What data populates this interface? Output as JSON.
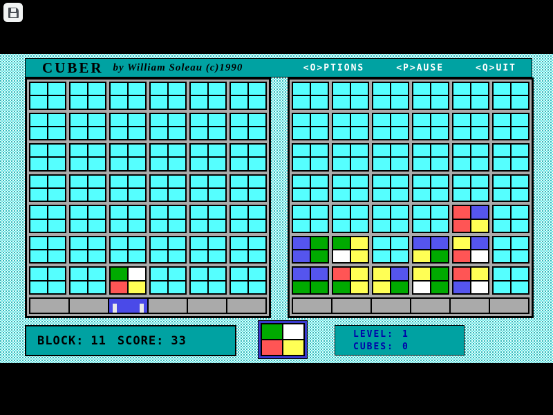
{
  "overlay": {
    "save_tooltip": "save",
    "toggle_glyph": "›"
  },
  "titlebar": {
    "title": "CUBER",
    "byline": "by William Soleau  (c)1990",
    "menu": [
      {
        "label": "<O>PTIONS"
      },
      {
        "label": "<P>AUSE"
      },
      {
        "label": "<Q>UIT"
      }
    ]
  },
  "colors": {
    "teal": "#00a2a2",
    "cyan_cell": "#55ffff",
    "gray": "#aaaaaa",
    "navy_text": "#0000aa",
    "paddle_blue": "#4a4ae8",
    "cells": {
      "C": "#55ffff",
      "G": "#00aa00",
      "R": "#ff5555",
      "Y": "#ffff55",
      "B": "#5555ee",
      "W": "#ffffff"
    }
  },
  "boards": {
    "left": {
      "paddle_column": 3,
      "rows": [
        [
          "CCCC",
          "CCCC",
          "CCCC",
          "CCCC",
          "CCCC",
          "CCCC"
        ],
        [
          "CCCC",
          "CCCC",
          "CCCC",
          "CCCC",
          "CCCC",
          "CCCC"
        ],
        [
          "CCCC",
          "CCCC",
          "CCCC",
          "CCCC",
          "CCCC",
          "CCCC"
        ],
        [
          "CCCC",
          "CCCC",
          "CCCC",
          "CCCC",
          "CCCC",
          "CCCC"
        ],
        [
          "CCCC",
          "CCCC",
          "CCCC",
          "CCCC",
          "CCCC",
          "CCCC"
        ],
        [
          "CCCC",
          "CCCC",
          "CCCC",
          "CCCC",
          "CCCC",
          "CCCC"
        ],
        [
          "CCCC",
          "CCCC",
          "GWRY",
          "CCCC",
          "CCCC",
          "CCCC"
        ]
      ]
    },
    "right": {
      "paddle_column": 0,
      "rows": [
        [
          "CCCC",
          "CCCC",
          "CCCC",
          "CCCC",
          "CCCC",
          "CCCC"
        ],
        [
          "CCCC",
          "CCCC",
          "CCCC",
          "CCCC",
          "CCCC",
          "CCCC"
        ],
        [
          "CCCC",
          "CCCC",
          "CCCC",
          "CCCC",
          "CCCC",
          "CCCC"
        ],
        [
          "CCCC",
          "CCCC",
          "CCCC",
          "CCCC",
          "CCCC",
          "CCCC"
        ],
        [
          "CCCC",
          "CCCC",
          "CCCC",
          "CCCC",
          "RBRY",
          "CCCC"
        ],
        [
          "BGBG",
          "GYWY",
          "CCCC",
          "BBYG",
          "YBRW",
          "CCCC"
        ],
        [
          "BBGG",
          "RYGY",
          "YBYG",
          "YGWG",
          "RYBW",
          "CCCC"
        ]
      ]
    }
  },
  "preview": {
    "cells": "GWRY"
  },
  "status": {
    "block_label": "BLOCK:",
    "block_value": "11",
    "score_label": "SCORE:",
    "score_value": "33",
    "level_label": "LEVEL:",
    "level_value": "1",
    "cubes_label": "CUBES:",
    "cubes_value": "0"
  }
}
